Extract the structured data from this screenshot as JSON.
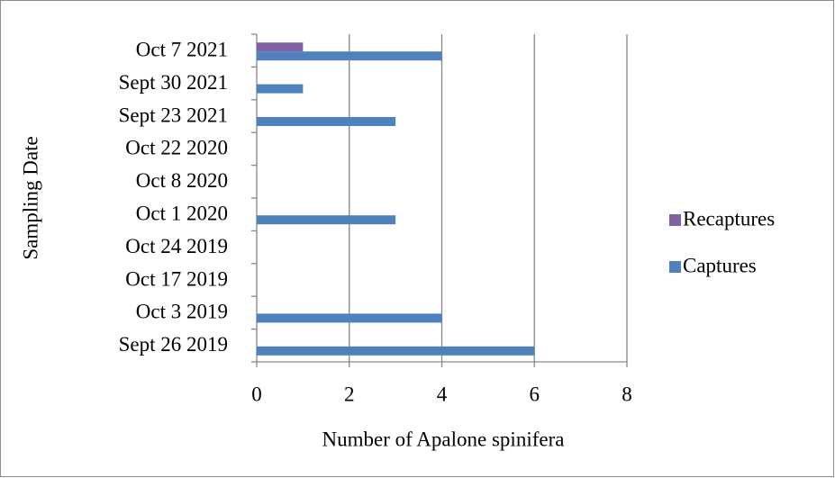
{
  "chart_data": {
    "type": "bar",
    "orientation": "horizontal",
    "xlabel": "Number of Apalone spinifera",
    "ylabel": "Sampling Date",
    "categories": [
      "Sept 26 2019",
      "Oct 3 2019",
      "Oct 17 2019",
      "Oct 24 2019",
      "Oct 1 2020",
      "Oct 8 2020",
      "Oct 22 2020",
      "Sept 23 2021",
      "Sept 30 2021",
      "Oct 7 2021"
    ],
    "series": [
      {
        "name": "Captures",
        "color": "#4f81bd",
        "values": [
          6,
          4,
          0,
          0,
          3,
          0,
          0,
          3,
          1,
          4
        ]
      },
      {
        "name": "Recaptures",
        "color": "#8064a2",
        "values": [
          0,
          0,
          0,
          0,
          0,
          0,
          0,
          0,
          0,
          1
        ]
      }
    ],
    "xlim": [
      0,
      8
    ],
    "xticks": [
      0,
      2,
      4,
      6,
      8
    ],
    "grid": true,
    "legend": "right"
  }
}
